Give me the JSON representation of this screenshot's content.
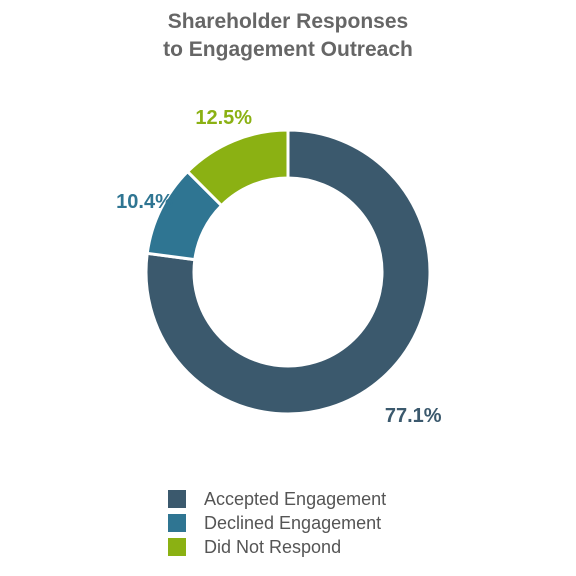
{
  "chart_data": {
    "type": "pie",
    "style": "donut",
    "title": "Shareholder Responses to Engagement Outreach",
    "title_lines": [
      "Shareholder Responses",
      "to Engagement Outreach"
    ],
    "categories": [
      "Accepted Engagement",
      "Declined Engagement",
      "Did Not Respond"
    ],
    "values": [
      77.1,
      10.4,
      12.5
    ],
    "value_labels": [
      "77.1%",
      "10.4%",
      "12.5%"
    ],
    "colors": [
      "#3b596d",
      "#2f7592",
      "#8bb113"
    ],
    "legend_position": "bottom"
  }
}
